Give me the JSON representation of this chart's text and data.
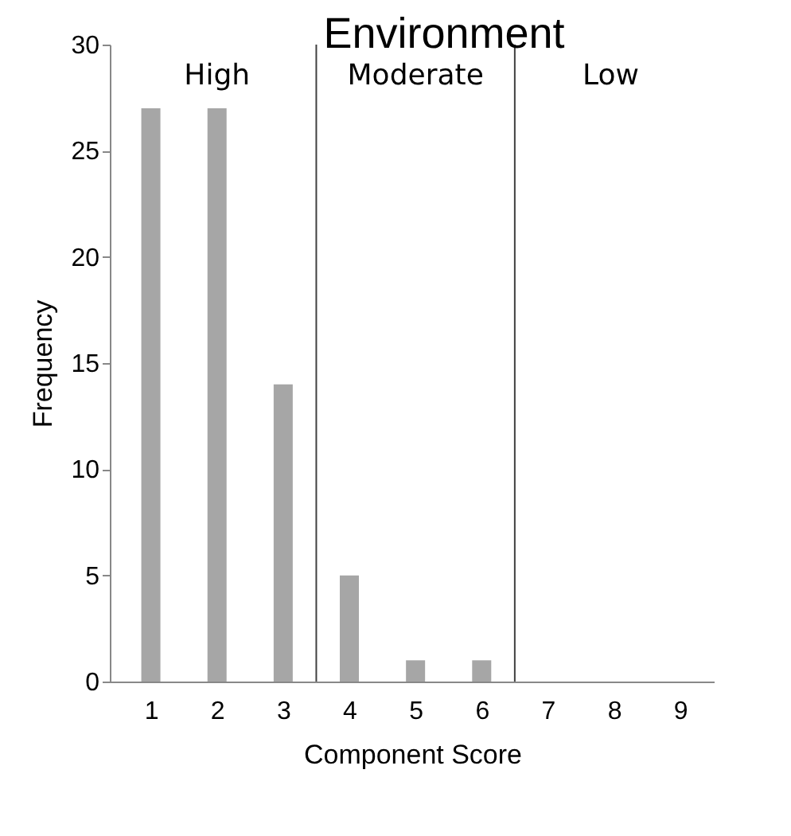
{
  "chart_data": {
    "type": "bar",
    "title": "Environment",
    "xlabel": "Component Score",
    "ylabel": "Frequency",
    "x": [
      1,
      2,
      3,
      4,
      5,
      6,
      7,
      8,
      9
    ],
    "values": [
      27,
      27,
      14,
      5,
      1,
      1,
      0,
      0,
      0
    ],
    "color": "#a6a6a6",
    "xlim": [
      0.5,
      9.4
    ],
    "xticks": [
      1,
      2,
      3,
      4,
      5,
      6,
      7,
      8,
      9
    ],
    "ylim": [
      0,
      30
    ],
    "yticks": [
      0,
      5,
      10,
      15,
      20,
      25,
      30
    ],
    "ref_lines": [
      {
        "axis": "x",
        "value": 3.5,
        "color": "#404040"
      },
      {
        "axis": "x",
        "value": 6.5,
        "color": "#404040"
      }
    ],
    "annotations": [
      "High",
      "Moderate",
      "Low"
    ],
    "grid": false
  }
}
